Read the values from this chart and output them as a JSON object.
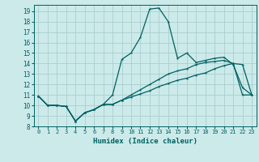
{
  "title": "",
  "xlabel": "Humidex (Indice chaleur)",
  "background_color": "#cceaea",
  "grid_color": "#aacece",
  "line_color": "#006060",
  "xlim": [
    -0.5,
    23.5
  ],
  "ylim": [
    8,
    19.6
  ],
  "yticks": [
    8,
    9,
    10,
    11,
    12,
    13,
    14,
    15,
    16,
    17,
    18,
    19
  ],
  "xticks": [
    0,
    1,
    2,
    3,
    4,
    5,
    6,
    7,
    8,
    9,
    10,
    11,
    12,
    13,
    14,
    15,
    16,
    17,
    18,
    19,
    20,
    21,
    22,
    23
  ],
  "line1_x": [
    0,
    1,
    2,
    3,
    4,
    5,
    6,
    7,
    8,
    9,
    10,
    11,
    12,
    13,
    14,
    15,
    16,
    17,
    18,
    19,
    20,
    21,
    22,
    23
  ],
  "line1_y": [
    10.9,
    10.0,
    10.0,
    9.9,
    8.5,
    9.3,
    9.6,
    10.1,
    10.1,
    10.5,
    10.8,
    11.1,
    11.4,
    11.8,
    12.1,
    12.4,
    12.6,
    12.9,
    13.1,
    13.5,
    13.8,
    14.0,
    13.9,
    11.0
  ],
  "line2_x": [
    0,
    1,
    2,
    3,
    4,
    5,
    6,
    7,
    8,
    9,
    10,
    11,
    12,
    13,
    14,
    15,
    16,
    17,
    18,
    19,
    20,
    21,
    22,
    23
  ],
  "line2_y": [
    10.9,
    10.0,
    10.0,
    9.9,
    8.5,
    9.3,
    9.6,
    10.1,
    11.0,
    14.4,
    15.0,
    16.5,
    19.2,
    19.3,
    18.0,
    14.5,
    15.0,
    14.1,
    14.3,
    14.5,
    14.6,
    13.9,
    11.7,
    11.0
  ],
  "line3_x": [
    0,
    1,
    2,
    3,
    4,
    5,
    6,
    7,
    8,
    9,
    10,
    11,
    12,
    13,
    14,
    15,
    16,
    17,
    18,
    19,
    20,
    21,
    22,
    23
  ],
  "line3_y": [
    10.9,
    10.0,
    10.0,
    9.9,
    8.5,
    9.3,
    9.6,
    10.1,
    10.1,
    10.5,
    11.0,
    11.5,
    12.0,
    12.5,
    13.0,
    13.3,
    13.5,
    13.9,
    14.1,
    14.2,
    14.3,
    14.0,
    11.0,
    11.0
  ]
}
